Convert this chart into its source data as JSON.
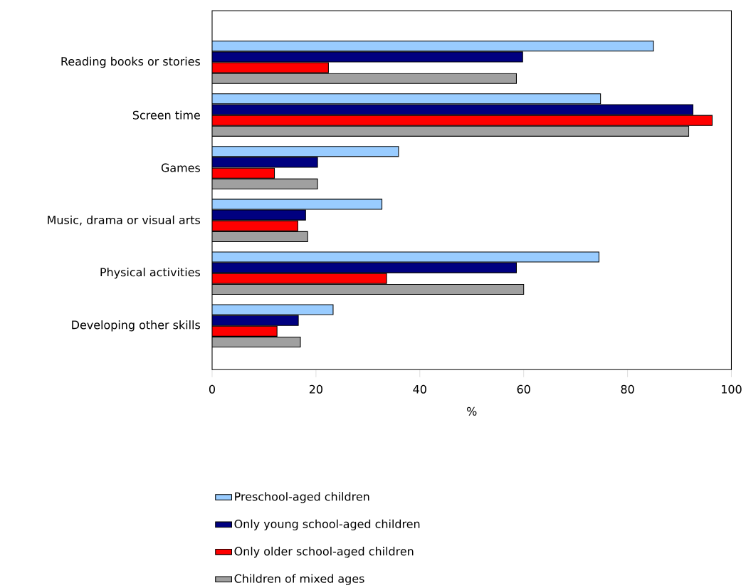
{
  "chart_data": {
    "type": "bar",
    "orientation": "horizontal",
    "xlabel": "%",
    "categories": [
      "Reading books or stories",
      "Screen time",
      "Games",
      "Music, drama or visual arts",
      "Physical activities",
      "Developing other skills"
    ],
    "series": [
      {
        "name": "Preschool-aged children",
        "color": "#99ccff",
        "values": [
          85.0,
          74.8,
          35.9,
          32.7,
          74.5,
          23.3
        ]
      },
      {
        "name": "Only young school-aged children",
        "color": "#000080",
        "values": [
          59.8,
          92.6,
          20.3,
          18.0,
          58.6,
          16.6
        ]
      },
      {
        "name": "Only older school-aged children",
        "color": "#ff0000",
        "values": [
          22.4,
          96.3,
          12.0,
          16.5,
          33.6,
          12.5
        ]
      },
      {
        "name": "Children of mixed ages",
        "color": "#a0a0a0",
        "values": [
          58.6,
          91.8,
          20.3,
          18.4,
          60.0,
          17.0
        ]
      }
    ],
    "xlim": [
      0,
      100
    ],
    "xticks": [
      0,
      20,
      40,
      60,
      80,
      100
    ],
    "grid": false,
    "legend": "bottom"
  }
}
